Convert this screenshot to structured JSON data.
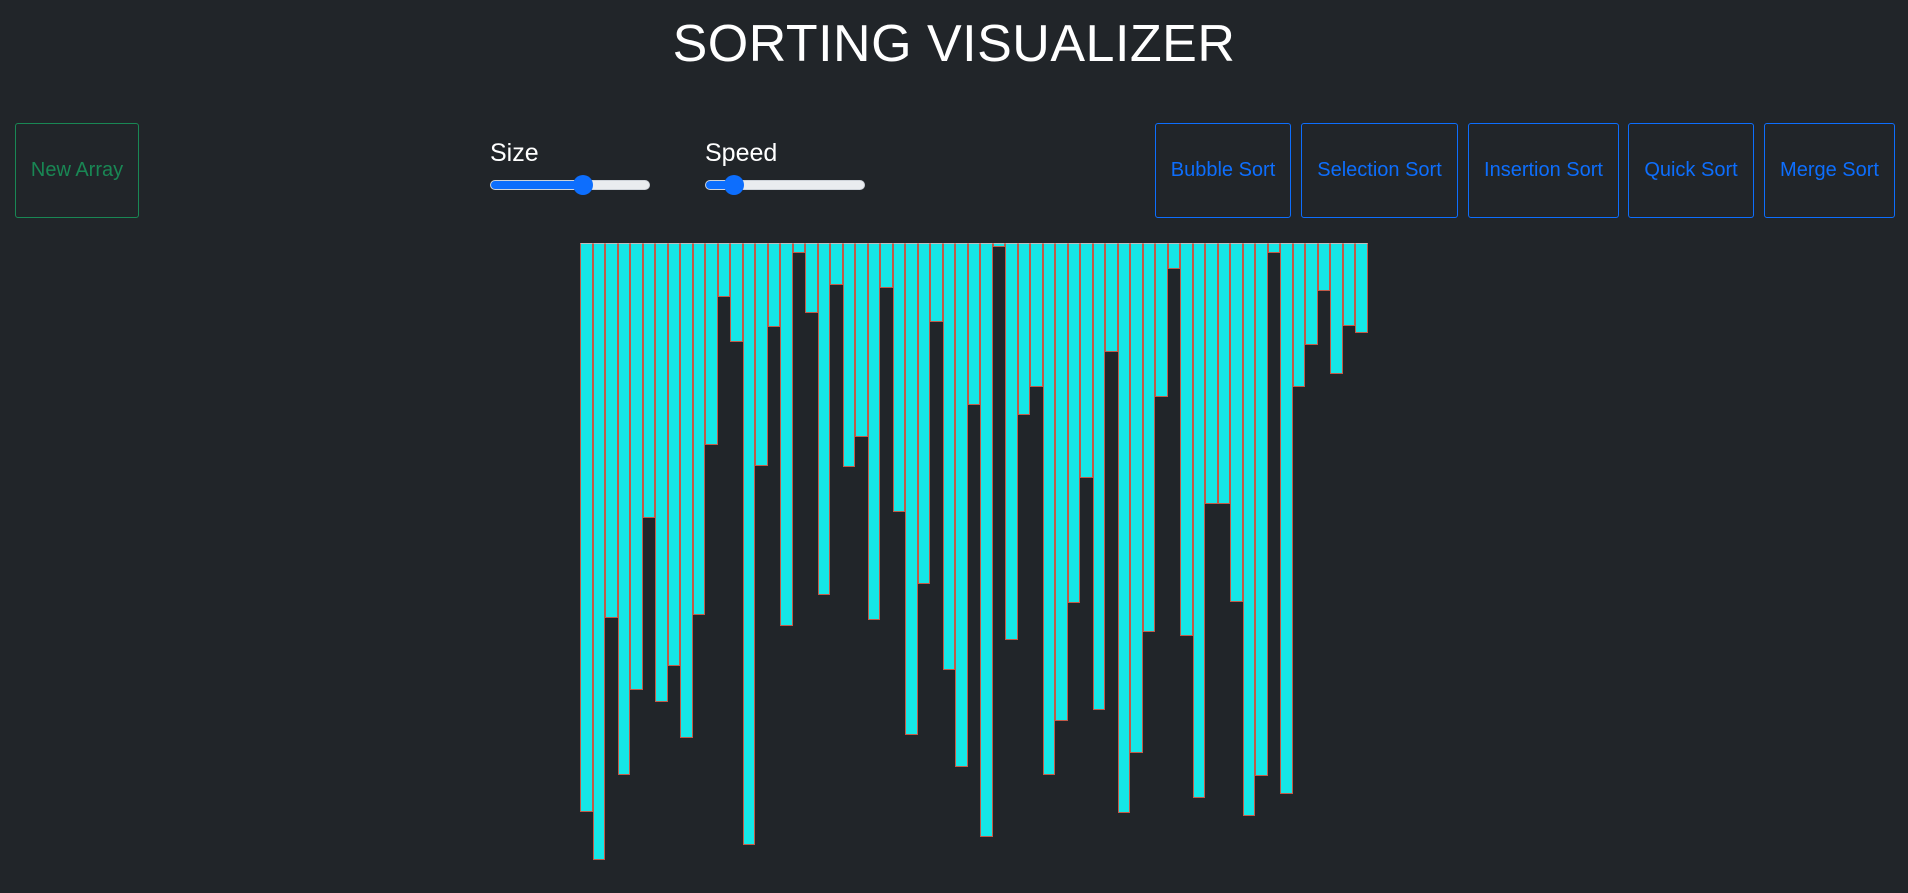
{
  "header": {
    "title": "SORTING VISUALIZER"
  },
  "controls": {
    "new_array_label": "New Array",
    "size": {
      "label": "Size",
      "value": 0.58
    },
    "speed": {
      "label": "Speed",
      "value": 0.18
    },
    "sort_buttons": [
      {
        "id": "bubble",
        "label": "Bubble Sort"
      },
      {
        "id": "selection",
        "label": "Selection Sort"
      },
      {
        "id": "insertion",
        "label": "Insertion Sort"
      },
      {
        "id": "quick",
        "label": "Quick Sort"
      },
      {
        "id": "merge",
        "label": "Merge Sort"
      }
    ]
  },
  "colors": {
    "background": "#212529",
    "bar_fill": "#16e6e6",
    "bar_border": "#c25a48",
    "success": "#198754",
    "primary": "#0d6efd"
  },
  "array": {
    "values": [
      569,
      617,
      375,
      532,
      447,
      275,
      459,
      423,
      495,
      372,
      202,
      54,
      99,
      602,
      223,
      84,
      383,
      10,
      70,
      352,
      42,
      224,
      194,
      377,
      45,
      269,
      492,
      341,
      79,
      427,
      524,
      162,
      594,
      4,
      397,
      172,
      144,
      532,
      478,
      360,
      235,
      467,
      109,
      570,
      510,
      389,
      154,
      26,
      393,
      555,
      261,
      261,
      359,
      573,
      533,
      10,
      551,
      144,
      102,
      48,
      131,
      83,
      90
    ]
  }
}
